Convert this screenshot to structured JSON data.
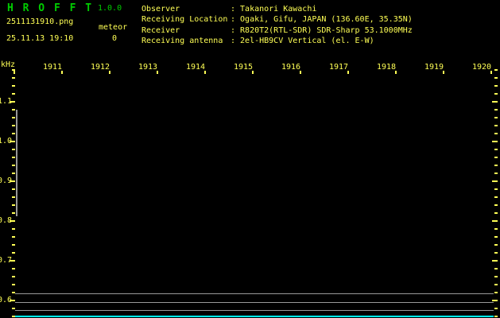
{
  "app": {
    "title": "H R O F F T",
    "version": "1.0.0"
  },
  "session": {
    "filename": "2511131910.png",
    "mode": "meteor",
    "datetime": "25.11.13 19:10",
    "count": "0"
  },
  "station": {
    "separator": ": ",
    "rows": [
      {
        "label": "Observer",
        "value": "Takanori Kawachi"
      },
      {
        "label": "Receiving Location",
        "value": "Ogaki, Gifu, JAPAN (136.60E, 35.35N)"
      },
      {
        "label": "Receiver",
        "value": "R820T2(RTL-SDR) SDR-Sharp 53.1000MHz"
      },
      {
        "label": "Receiving antenna",
        "value": "2el-HB9CV Vertical (el. E-W)"
      }
    ]
  },
  "spectrogram": {
    "y_axis_unit": "kHz",
    "y_major_labels": [
      "1.1",
      "1.0",
      "0.9",
      "0.8",
      "0.7",
      "0.6"
    ],
    "x_time_labels": [
      "1911",
      "1912",
      "1913",
      "1914",
      "1915",
      "1916",
      "1917",
      "1918",
      "1919",
      "1920"
    ],
    "reference_line_count": 3
  },
  "colors": {
    "background": "#000000",
    "title_green": "#00cc00",
    "text_yellow": "#ffff55",
    "reference_gray": "#999999",
    "trace_cyan": "#00ffff"
  }
}
